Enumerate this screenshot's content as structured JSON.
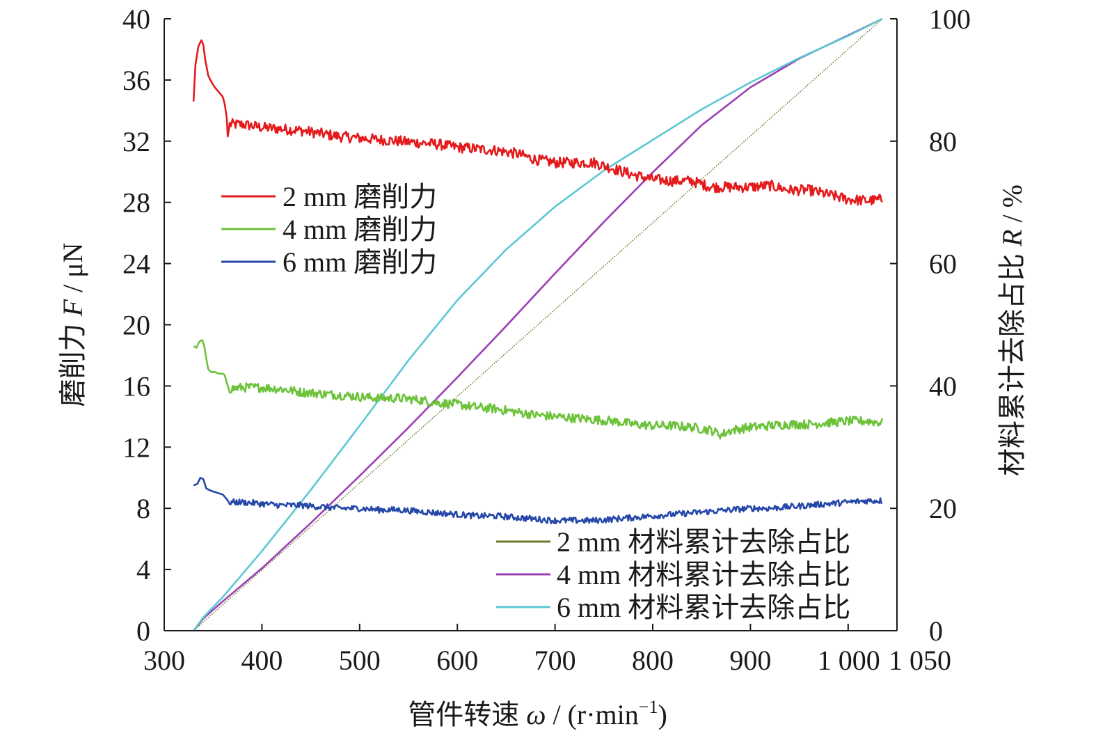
{
  "chart_data": {
    "type": "line",
    "xlabel_prefix": "管件转速 ",
    "xlabel_symbol": "ω",
    "xlabel_unit": " / (r·min",
    "xlabel_sup": "−1",
    "xlabel_close": ")",
    "ylabel_left_prefix": "磨削力 ",
    "ylabel_left_symbol": "F",
    "ylabel_left_unit": " / μN",
    "ylabel_right_prefix": "材料累计去除占比 ",
    "ylabel_right_symbol": "R",
    "ylabel_right_unit": " / %",
    "xlim": [
      300,
      1050
    ],
    "ylim_left": [
      0,
      40
    ],
    "ylim_right": [
      0,
      100
    ],
    "x_ticks": [
      300,
      400,
      500,
      600,
      700,
      800,
      900,
      1000,
      1050
    ],
    "x_tick_labels": [
      "300",
      "400",
      "500",
      "600",
      "700",
      "800",
      "900",
      "1 000",
      "1 050"
    ],
    "y_left_ticks": [
      0,
      4,
      8,
      12,
      16,
      20,
      24,
      28,
      32,
      36,
      40
    ],
    "y_left_tick_labels": [
      "0",
      "4",
      "8",
      "12",
      "16",
      "20",
      "24",
      "28",
      "32",
      "36",
      "40"
    ],
    "y_right_ticks": [
      0,
      20,
      40,
      60,
      80,
      100
    ],
    "y_right_tick_labels": [
      "0",
      "20",
      "40",
      "60",
      "80",
      "100"
    ],
    "legends": [
      {
        "placement": "upper-left",
        "entries": [
          0,
          1,
          2
        ]
      },
      {
        "placement": "lower-right",
        "entries": [
          3,
          4,
          5
        ]
      }
    ],
    "series": [
      {
        "name": "2 mm 磨削力",
        "axis": "left",
        "color": "#e41a1c",
        "noise": 0.35,
        "x": [
          330,
          332,
          335,
          338,
          340,
          342,
          345,
          348,
          352,
          356,
          360,
          362,
          364,
          365,
          367,
          380,
          400,
          420,
          440,
          460,
          480,
          500,
          520,
          540,
          560,
          580,
          600,
          620,
          640,
          660,
          680,
          700,
          720,
          740,
          760,
          780,
          800,
          820,
          840,
          860,
          880,
          900,
          920,
          940,
          960,
          980,
          1000,
          1020,
          1035
        ],
        "y": [
          34.6,
          37.0,
          38.2,
          38.6,
          38.3,
          37.3,
          36.3,
          35.9,
          35.5,
          35.2,
          34.9,
          34.4,
          33.5,
          32.3,
          33.1,
          33.1,
          32.9,
          32.8,
          32.7,
          32.5,
          32.3,
          32.2,
          32.1,
          32.0,
          31.9,
          31.8,
          31.6,
          31.5,
          31.4,
          31.2,
          30.8,
          30.6,
          30.6,
          30.6,
          30.2,
          29.8,
          29.5,
          29.4,
          29.4,
          29.0,
          29.0,
          29.0,
          29.1,
          28.8,
          28.8,
          28.5,
          28.2,
          28.1,
          28.2
        ]
      },
      {
        "name": "4 mm 磨削力",
        "axis": "left",
        "color": "#6cc23a",
        "noise": 0.3,
        "x": [
          330,
          333,
          336,
          339,
          341,
          343,
          345,
          348,
          352,
          356,
          360,
          362,
          364,
          366,
          380,
          400,
          420,
          440,
          460,
          480,
          500,
          520,
          540,
          560,
          580,
          600,
          620,
          640,
          660,
          680,
          700,
          720,
          740,
          760,
          780,
          800,
          820,
          840,
          860,
          870,
          880,
          900,
          920,
          940,
          960,
          980,
          1000,
          1020,
          1035
        ],
        "y": [
          18.6,
          18.5,
          18.9,
          19.0,
          18.6,
          17.8,
          17.1,
          16.9,
          16.9,
          16.8,
          16.8,
          16.7,
          16.2,
          15.8,
          15.9,
          15.9,
          15.8,
          15.6,
          15.5,
          15.4,
          15.3,
          15.2,
          15.2,
          15.1,
          14.9,
          14.8,
          14.6,
          14.5,
          14.3,
          14.1,
          14.0,
          13.9,
          13.8,
          13.7,
          13.5,
          13.4,
          13.4,
          13.3,
          13.1,
          12.8,
          13.1,
          13.3,
          13.4,
          13.5,
          13.5,
          13.6,
          13.7,
          13.7,
          13.6
        ]
      },
      {
        "name": "6 mm 磨削力",
        "axis": "left",
        "color": "#2548a8",
        "noise": 0.2,
        "x": [
          330,
          334,
          337,
          340,
          343,
          346,
          350,
          355,
          360,
          364,
          366,
          380,
          400,
          420,
          440,
          460,
          480,
          500,
          520,
          540,
          560,
          580,
          600,
          620,
          640,
          660,
          680,
          700,
          720,
          740,
          760,
          780,
          800,
          820,
          840,
          860,
          880,
          900,
          920,
          940,
          960,
          980,
          1000,
          1020,
          1035
        ],
        "y": [
          9.5,
          9.6,
          10.0,
          9.9,
          9.3,
          9.2,
          9.1,
          9.0,
          8.9,
          8.6,
          8.4,
          8.4,
          8.3,
          8.2,
          8.2,
          8.1,
          8.0,
          8.0,
          7.9,
          7.9,
          7.8,
          7.7,
          7.6,
          7.5,
          7.5,
          7.4,
          7.3,
          7.2,
          7.2,
          7.2,
          7.3,
          7.4,
          7.5,
          7.6,
          7.7,
          7.8,
          7.9,
          8.0,
          8.0,
          8.1,
          8.2,
          8.3,
          8.4,
          8.5,
          8.5
        ]
      },
      {
        "name": "2 mm 材料累计去除占比",
        "axis": "right",
        "color": "#6b7a2a",
        "dotted": true,
        "x": [
          330,
          1035
        ],
        "y": [
          0,
          100
        ]
      },
      {
        "name": "4 mm 材料累计去除占比",
        "axis": "right",
        "color": "#9b3fb5",
        "x": [
          330,
          340,
          360,
          400,
          450,
          500,
          550,
          600,
          650,
          700,
          750,
          800,
          850,
          900,
          950,
          1000,
          1035
        ],
        "y": [
          0,
          2.0,
          4.8,
          10.2,
          17.6,
          25.3,
          33.2,
          41.4,
          49.8,
          58.4,
          66.8,
          74.9,
          82.6,
          88.8,
          93.5,
          97.3,
          100
        ]
      },
      {
        "name": "6 mm 材料累计去除占比",
        "axis": "right",
        "color": "#5cc8d2",
        "x": [
          330,
          340,
          360,
          400,
          450,
          500,
          550,
          600,
          650,
          700,
          750,
          800,
          850,
          900,
          950,
          1000,
          1035
        ],
        "y": [
          0,
          2.2,
          5.5,
          13.0,
          23.0,
          33.5,
          44.2,
          54.0,
          62.3,
          69.3,
          75.2,
          80.2,
          85.2,
          89.6,
          93.6,
          97.2,
          100
        ]
      }
    ]
  }
}
